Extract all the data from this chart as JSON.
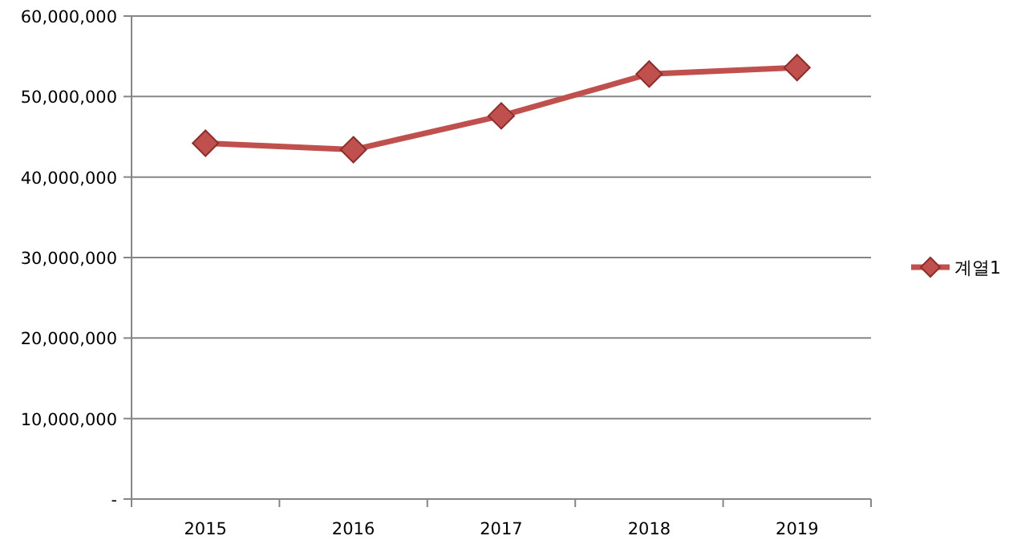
{
  "chart_data": {
    "type": "line",
    "categories": [
      "2015",
      "2016",
      "2017",
      "2018",
      "2019"
    ],
    "series": [
      {
        "name": "계열1",
        "color": "#c0504d",
        "values": [
          44200000,
          43400000,
          47600000,
          52800000,
          53600000
        ]
      }
    ],
    "ylim": [
      0,
      60000000
    ],
    "yticks": [
      {
        "value": 0,
        "label": "-"
      },
      {
        "value": 10000000,
        "label": "10,000,000"
      },
      {
        "value": 20000000,
        "label": "20,000,000"
      },
      {
        "value": 30000000,
        "label": "30,000,000"
      },
      {
        "value": 40000000,
        "label": "40,000,000"
      },
      {
        "value": 50000000,
        "label": "50,000,000"
      },
      {
        "value": 60000000,
        "label": "60,000,000"
      }
    ],
    "grid": "y",
    "legend": "right",
    "marker": "diamond",
    "line_style": "solid"
  }
}
